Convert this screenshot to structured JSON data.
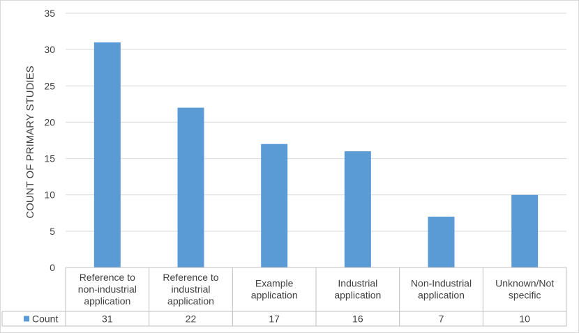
{
  "chart_data": {
    "type": "bar",
    "ylabel": "COUNT OF PRIMARY STUDIES",
    "xlabel": "",
    "ylim": [
      0,
      35
    ],
    "yticks": [
      0,
      5,
      10,
      15,
      20,
      25,
      30,
      35
    ],
    "grid": true,
    "categories": [
      [
        "Reference to",
        "non-industrial",
        "application"
      ],
      [
        "Reference to",
        "industrial",
        "application"
      ],
      [
        "Example",
        "application"
      ],
      [
        "Industrial",
        "application"
      ],
      [
        "Non-Industrial",
        "application"
      ],
      [
        "Unknown/Not",
        "specific"
      ]
    ],
    "series": [
      {
        "name": "Count",
        "values": [
          31,
          22,
          17,
          16,
          7,
          10
        ],
        "color": "#5b9bd5"
      }
    ],
    "data_table": true,
    "legend_placement": "data-table-row"
  }
}
